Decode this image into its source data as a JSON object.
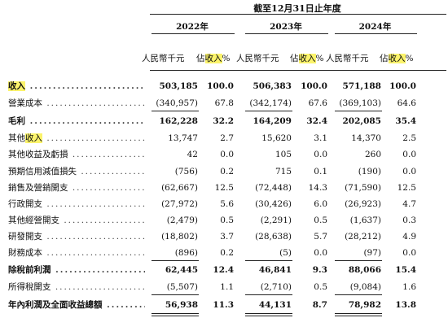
{
  "header": {
    "period_title": "截至12月31日止年度",
    "years": [
      "2022年",
      "2023年",
      "2024年"
    ],
    "col_amount": "人民幣千元",
    "col_pct_prefix": "佔",
    "col_pct_highlight": "收入",
    "col_pct_suffix": "%"
  },
  "rows": [
    {
      "label": "收入",
      "highlight": "收入",
      "suffix": "",
      "bold": true,
      "v": [
        "503,185",
        "100.0",
        "506,383",
        "100.0",
        "571,188",
        "100.0"
      ]
    },
    {
      "label": "營業成本",
      "highlight": "",
      "suffix": "",
      "bold": false,
      "v": [
        "(340,957)",
        "67.8",
        "(342,174)",
        "67.6",
        "(369,103)",
        "64.6"
      ]
    },
    {
      "label": "毛利",
      "highlight": "",
      "suffix": "",
      "bold": true,
      "v": [
        "162,228",
        "32.2",
        "164,209",
        "32.4",
        "202,085",
        "35.4"
      ]
    },
    {
      "label": "其他",
      "highlight": "收入",
      "suffix": "",
      "bold": false,
      "v": [
        "13,747",
        "2.7",
        "15,620",
        "3.1",
        "14,370",
        "2.5"
      ]
    },
    {
      "label": "其他收益及虧損",
      "highlight": "",
      "suffix": "",
      "bold": false,
      "v": [
        "42",
        "0.0",
        "105",
        "0.0",
        "260",
        "0.0"
      ]
    },
    {
      "label": "預期信用減值損失",
      "highlight": "",
      "suffix": "",
      "bold": false,
      "v": [
        "(756)",
        "0.2",
        "715",
        "0.1",
        "(190)",
        "0.0"
      ]
    },
    {
      "label": "銷售及營銷開支",
      "highlight": "",
      "suffix": "",
      "bold": false,
      "v": [
        "(62,667)",
        "12.5",
        "(72,448)",
        "14.3",
        "(71,590)",
        "12.5"
      ]
    },
    {
      "label": "行政開支",
      "highlight": "",
      "suffix": "",
      "bold": false,
      "v": [
        "(27,972)",
        "5.6",
        "(30,426)",
        "6.0",
        "(26,923)",
        "4.7"
      ]
    },
    {
      "label": "其他經營開支",
      "highlight": "",
      "suffix": "",
      "bold": false,
      "v": [
        "(2,479)",
        "0.5",
        "(2,291)",
        "0.5",
        "(1,637)",
        "0.3"
      ]
    },
    {
      "label": "研發開支",
      "highlight": "",
      "suffix": "",
      "bold": false,
      "v": [
        "(18,802)",
        "3.7",
        "(28,638)",
        "5.7",
        "(28,212)",
        "4.9"
      ]
    },
    {
      "label": "財務成本",
      "highlight": "",
      "suffix": "",
      "bold": false,
      "v": [
        "(896)",
        "0.2",
        "(5)",
        "0.0",
        "(97)",
        "0.0"
      ]
    },
    {
      "label": "除稅前利潤",
      "highlight": "",
      "suffix": "",
      "bold": true,
      "v": [
        "62,445",
        "12.4",
        "46,841",
        "9.3",
        "88,066",
        "15.4"
      ]
    },
    {
      "label": "所得稅開支",
      "highlight": "",
      "suffix": "",
      "bold": false,
      "v": [
        "(5,507)",
        "1.1",
        "(2,710)",
        "0.5",
        "(9,084)",
        "1.6"
      ]
    },
    {
      "label": "年內利潤及全面收益總額",
      "highlight": "",
      "suffix": "",
      "bold": true,
      "v": [
        "56,938",
        "11.3",
        "44,131",
        "8.7",
        "78,982",
        "13.8"
      ]
    }
  ]
}
